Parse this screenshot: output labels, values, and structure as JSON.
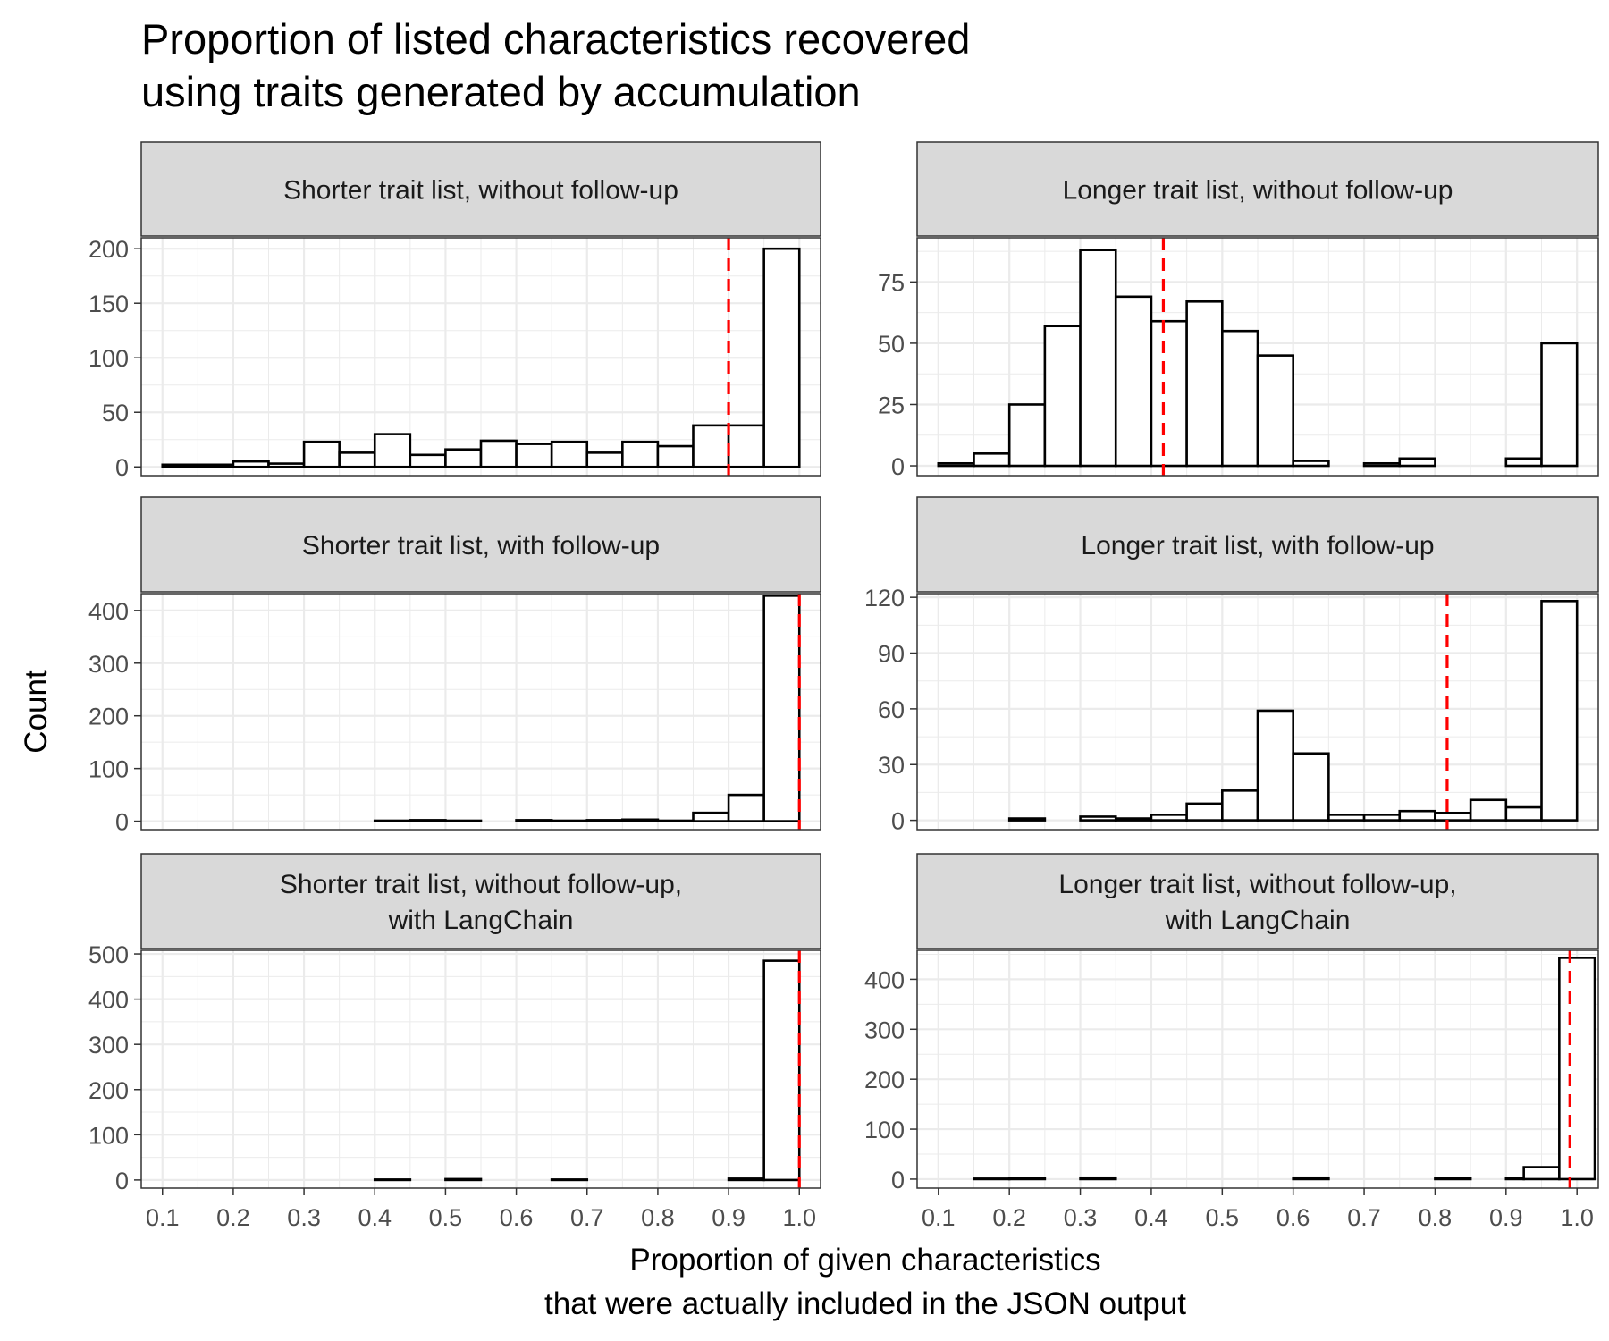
{
  "chart_data": {
    "type": "bar",
    "title_lines": [
      "Proportion of listed characteristics recovered",
      "using traits generated by accumulation"
    ],
    "xlabel_lines": [
      "Proportion of given characteristics",
      "that were actually included in the JSON output"
    ],
    "ylabel": "Count",
    "x_tick_labels": [
      "0.1",
      "0.2",
      "0.3",
      "0.4",
      "0.5",
      "0.6",
      "0.7",
      "0.8",
      "0.9",
      "1.0"
    ],
    "x_ticks": [
      0.1,
      0.2,
      0.3,
      0.4,
      0.5,
      0.6,
      0.7,
      0.8,
      0.9,
      1.0
    ],
    "xlim": [
      0.07,
      1.03
    ],
    "bin_start": 0.1,
    "bin_width": 0.05,
    "grid": true,
    "legend": "none",
    "colors": {
      "bar_fill": "#ffffff",
      "bar_stroke": "#000000",
      "reference_line": "#ff0000",
      "strip_fill": "#d9d9d9",
      "grid": "#ebebeb"
    },
    "panels": [
      {
        "strip_lines": [
          "Shorter trait list, without follow-up"
        ],
        "values": [
          2,
          2,
          5,
          3,
          23,
          13,
          30,
          11,
          16,
          24,
          21,
          23,
          13,
          23,
          19,
          38,
          38,
          200
        ],
        "y_ticks": [
          0,
          50,
          100,
          150,
          200
        ],
        "y_tick_labels": [
          "0",
          "50",
          "100",
          "150",
          "200"
        ],
        "ylim": [
          -8,
          210
        ],
        "reference_x": 0.9
      },
      {
        "strip_lines": [
          "Longer trait list, without follow-up"
        ],
        "values": [
          1,
          5,
          25,
          57,
          88,
          69,
          59,
          67,
          55,
          45,
          2,
          0,
          1,
          3,
          0,
          0,
          3,
          50
        ],
        "y_ticks": [
          0,
          25,
          50,
          75
        ],
        "y_tick_labels": [
          "0",
          "25",
          "50",
          "75"
        ],
        "ylim": [
          -4,
          93
        ],
        "reference_x": 0.417
      },
      {
        "strip_lines": [
          "Shorter trait list, with follow-up"
        ],
        "values": [
          0,
          0,
          0,
          0,
          0,
          0,
          1,
          2,
          1,
          0,
          2,
          1,
          2,
          3,
          1,
          16,
          50,
          428
        ],
        "y_ticks": [
          0,
          100,
          200,
          300,
          400
        ],
        "y_tick_labels": [
          "0",
          "100",
          "200",
          "300",
          "400"
        ],
        "ylim": [
          -16,
          432
        ],
        "reference_x": 1.0
      },
      {
        "strip_lines": [
          "Longer trait list, with follow-up"
        ],
        "values": [
          0,
          0,
          1,
          0,
          2,
          1,
          3,
          9,
          16,
          59,
          36,
          3,
          3,
          5,
          4,
          11,
          7,
          118
        ],
        "y_ticks": [
          0,
          30,
          60,
          90,
          120
        ],
        "y_tick_labels": [
          "0",
          "30",
          "60",
          "90",
          "120"
        ],
        "ylim": [
          -5,
          122
        ],
        "reference_x": 0.817
      },
      {
        "strip_lines": [
          "Shorter trait list, without follow-up,",
          "with LangChain"
        ],
        "values": [
          0,
          0,
          0,
          0,
          0,
          0,
          1,
          0,
          2,
          0,
          0,
          1,
          0,
          0,
          0,
          0,
          3,
          485
        ],
        "y_ticks": [
          0,
          100,
          200,
          300,
          400,
          500
        ],
        "y_tick_labels": [
          "0",
          "100",
          "200",
          "300",
          "400",
          "500"
        ],
        "ylim": [
          -18,
          508
        ],
        "reference_x": 1.0
      },
      {
        "strip_lines": [
          "Longer trait list, without follow-up,",
          "with LangChain"
        ],
        "values": [
          0,
          1,
          2,
          0,
          3,
          0,
          0,
          0,
          0,
          0,
          3,
          0,
          0,
          0,
          2,
          0,
          2,
          24,
          443
        ],
        "y_ticks": [
          0,
          100,
          200,
          300,
          400
        ],
        "y_tick_labels": [
          "0",
          "100",
          "200",
          "300",
          "400"
        ],
        "ylim": [
          -18,
          458
        ],
        "reference_x": 0.99,
        "bins_x": [
          0.1,
          0.15,
          0.2,
          0.25,
          0.3,
          0.35,
          0.4,
          0.45,
          0.5,
          0.55,
          0.6,
          0.65,
          0.7,
          0.75,
          0.8,
          0.85,
          0.9,
          0.925,
          0.975
        ]
      }
    ]
  }
}
